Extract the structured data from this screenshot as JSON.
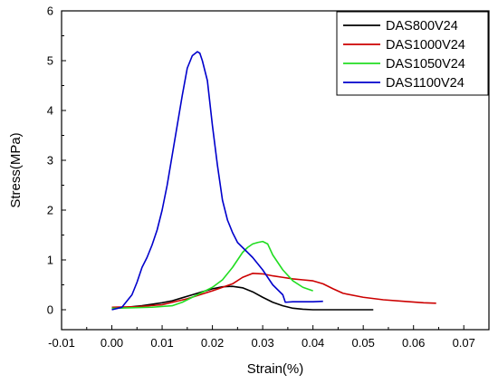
{
  "chart_data": {
    "type": "line",
    "xlabel": "Strain(%)",
    "ylabel": "Stress(MPa)",
    "xlim": [
      -0.01,
      0.075
    ],
    "ylim": [
      -0.4,
      6
    ],
    "xticks": [
      -0.01,
      0.0,
      0.01,
      0.02,
      0.03,
      0.04,
      0.05,
      0.06,
      0.07
    ],
    "xtick_labels": [
      "-0.01",
      "0.00",
      "0.01",
      "0.02",
      "0.03",
      "0.04",
      "0.05",
      "0.06",
      "0.07"
    ],
    "yticks": [
      0,
      1,
      2,
      3,
      4,
      5,
      6
    ],
    "ytick_labels": [
      "0",
      "1",
      "2",
      "3",
      "4",
      "5",
      "6"
    ],
    "grid": false,
    "legend_position": "top-right",
    "series": [
      {
        "name": "DAS800V24",
        "color": "#000000",
        "points": [
          [
            0.0,
            0.02
          ],
          [
            0.002,
            0.04
          ],
          [
            0.004,
            0.06
          ],
          [
            0.006,
            0.08
          ],
          [
            0.008,
            0.11
          ],
          [
            0.01,
            0.14
          ],
          [
            0.012,
            0.18
          ],
          [
            0.014,
            0.24
          ],
          [
            0.016,
            0.3
          ],
          [
            0.018,
            0.36
          ],
          [
            0.02,
            0.42
          ],
          [
            0.022,
            0.46
          ],
          [
            0.024,
            0.47
          ],
          [
            0.026,
            0.44
          ],
          [
            0.028,
            0.36
          ],
          [
            0.03,
            0.25
          ],
          [
            0.032,
            0.15
          ],
          [
            0.034,
            0.08
          ],
          [
            0.036,
            0.03
          ],
          [
            0.038,
            0.01
          ],
          [
            0.04,
            0.0
          ],
          [
            0.045,
            0.0
          ],
          [
            0.052,
            0.0
          ]
        ]
      },
      {
        "name": "DAS1000V24",
        "color": "#cc0000",
        "points": [
          [
            0.0,
            0.05
          ],
          [
            0.005,
            0.06
          ],
          [
            0.01,
            0.1
          ],
          [
            0.015,
            0.22
          ],
          [
            0.02,
            0.38
          ],
          [
            0.022,
            0.45
          ],
          [
            0.024,
            0.52
          ],
          [
            0.026,
            0.65
          ],
          [
            0.028,
            0.73
          ],
          [
            0.03,
            0.72
          ],
          [
            0.032,
            0.68
          ],
          [
            0.034,
            0.65
          ],
          [
            0.036,
            0.62
          ],
          [
            0.038,
            0.6
          ],
          [
            0.04,
            0.58
          ],
          [
            0.042,
            0.52
          ],
          [
            0.044,
            0.42
          ],
          [
            0.046,
            0.33
          ],
          [
            0.05,
            0.25
          ],
          [
            0.054,
            0.2
          ],
          [
            0.058,
            0.17
          ],
          [
            0.062,
            0.14
          ],
          [
            0.0645,
            0.13
          ]
        ]
      },
      {
        "name": "DAS1050V24",
        "color": "#22dd22",
        "points": [
          [
            0.0,
            0.03
          ],
          [
            0.004,
            0.04
          ],
          [
            0.008,
            0.05
          ],
          [
            0.012,
            0.08
          ],
          [
            0.014,
            0.15
          ],
          [
            0.016,
            0.25
          ],
          [
            0.018,
            0.35
          ],
          [
            0.02,
            0.45
          ],
          [
            0.022,
            0.6
          ],
          [
            0.024,
            0.85
          ],
          [
            0.026,
            1.15
          ],
          [
            0.027,
            1.25
          ],
          [
            0.028,
            1.32
          ],
          [
            0.029,
            1.35
          ],
          [
            0.03,
            1.37
          ],
          [
            0.031,
            1.32
          ],
          [
            0.032,
            1.1
          ],
          [
            0.034,
            0.8
          ],
          [
            0.036,
            0.58
          ],
          [
            0.038,
            0.45
          ],
          [
            0.04,
            0.38
          ]
        ]
      },
      {
        "name": "DAS1100V24",
        "color": "#0000cc",
        "points": [
          [
            0.0,
            0.0
          ],
          [
            0.002,
            0.05
          ],
          [
            0.004,
            0.3
          ],
          [
            0.005,
            0.55
          ],
          [
            0.006,
            0.85
          ],
          [
            0.007,
            1.05
          ],
          [
            0.008,
            1.3
          ],
          [
            0.009,
            1.6
          ],
          [
            0.01,
            2.0
          ],
          [
            0.011,
            2.5
          ],
          [
            0.012,
            3.1
          ],
          [
            0.013,
            3.7
          ],
          [
            0.014,
            4.3
          ],
          [
            0.015,
            4.85
          ],
          [
            0.016,
            5.1
          ],
          [
            0.017,
            5.18
          ],
          [
            0.0175,
            5.15
          ],
          [
            0.018,
            5.0
          ],
          [
            0.019,
            4.6
          ],
          [
            0.02,
            3.7
          ],
          [
            0.021,
            2.9
          ],
          [
            0.022,
            2.2
          ],
          [
            0.023,
            1.8
          ],
          [
            0.024,
            1.55
          ],
          [
            0.025,
            1.35
          ],
          [
            0.026,
            1.25
          ],
          [
            0.028,
            1.05
          ],
          [
            0.03,
            0.8
          ],
          [
            0.032,
            0.5
          ],
          [
            0.034,
            0.3
          ],
          [
            0.0345,
            0.15
          ],
          [
            0.036,
            0.16
          ],
          [
            0.04,
            0.16
          ],
          [
            0.042,
            0.17
          ]
        ]
      }
    ]
  }
}
